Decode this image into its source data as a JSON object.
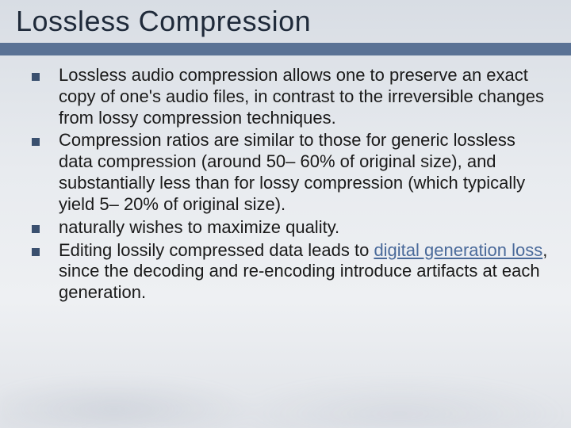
{
  "slide": {
    "title": "Lossless Compression",
    "title_fontsize": 36,
    "title_color": "#1f2a3a",
    "band_color": "#5a7295",
    "background_gradient": [
      "#d8dde4",
      "#e8ebef",
      "#eef0f3",
      "#e0e3e8"
    ],
    "body_fontsize": 22,
    "body_color": "#1a1a1a",
    "bullet_color": "#3a506f",
    "link_color": "#4a6a9a",
    "bullets": [
      {
        "text": "Lossless audio compression allows one to preserve an exact copy of one's audio files, in contrast to the irreversible changes from lossy compression techniques."
      },
      {
        "text": "Compression ratios are similar to those for generic lossless data compression (around 50– 60% of original size), and substantially less than for lossy compression (which typically yield 5– 20% of original size)."
      },
      {
        "text": "naturally wishes to maximize quality."
      },
      {
        "text_pre": "Editing lossily compressed data leads to ",
        "link_text": "digital generation loss",
        "text_post": ", since the decoding and re-encoding introduce artifacts at each generation."
      }
    ]
  }
}
